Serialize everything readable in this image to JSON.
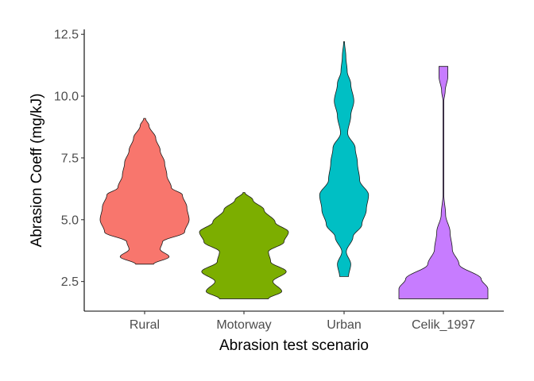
{
  "chart_data": {
    "type": "violin",
    "xlabel": "Abrasion test scenario",
    "ylabel": "Abrasion Coeff (mg/kJ)",
    "ylim": [
      1.3,
      12.7
    ],
    "yticks": [
      "2.5",
      "5.0",
      "7.5",
      "10.0",
      "12.5"
    ],
    "categories": [
      "Rural",
      "Motorway",
      "Urban",
      "Celik_1997"
    ],
    "grid": false,
    "legend": "none",
    "series": [
      {
        "category": "Rural",
        "color": "#F8766D",
        "y_range": [
          3.2,
          9.1
        ],
        "density_profile": [
          [
            3.2,
            0.2
          ],
          [
            3.5,
            0.55
          ],
          [
            3.8,
            0.35
          ],
          [
            4.1,
            0.4
          ],
          [
            4.5,
            0.9
          ],
          [
            5.0,
            1.0
          ],
          [
            5.5,
            0.95
          ],
          [
            6.0,
            0.85
          ],
          [
            6.3,
            0.6
          ],
          [
            6.8,
            0.5
          ],
          [
            7.3,
            0.45
          ],
          [
            7.8,
            0.35
          ],
          [
            8.3,
            0.25
          ],
          [
            8.8,
            0.1
          ],
          [
            9.1,
            0.02
          ]
        ]
      },
      {
        "category": "Motorway",
        "color": "#7CAE00",
        "y_range": [
          1.8,
          6.1
        ],
        "density_profile": [
          [
            1.8,
            0.55
          ],
          [
            2.1,
            0.85
          ],
          [
            2.5,
            0.65
          ],
          [
            2.9,
            0.95
          ],
          [
            3.3,
            0.6
          ],
          [
            3.7,
            0.55
          ],
          [
            4.1,
            0.9
          ],
          [
            4.5,
            1.0
          ],
          [
            4.9,
            0.7
          ],
          [
            5.4,
            0.45
          ],
          [
            5.8,
            0.2
          ],
          [
            6.1,
            0.02
          ]
        ]
      },
      {
        "category": "Urban",
        "color": "#00BFC4",
        "y_range": [
          2.7,
          12.2
        ],
        "density_profile": [
          [
            2.7,
            0.1
          ],
          [
            3.2,
            0.15
          ],
          [
            3.7,
            0.05
          ],
          [
            4.3,
            0.2
          ],
          [
            4.8,
            0.4
          ],
          [
            5.4,
            0.5
          ],
          [
            6.0,
            0.55
          ],
          [
            6.6,
            0.35
          ],
          [
            7.3,
            0.3
          ],
          [
            7.9,
            0.25
          ],
          [
            8.5,
            0.08
          ],
          [
            9.2,
            0.15
          ],
          [
            9.8,
            0.22
          ],
          [
            10.5,
            0.15
          ],
          [
            11.0,
            0.07
          ],
          [
            11.6,
            0.04
          ],
          [
            12.2,
            0.01
          ]
        ]
      },
      {
        "category": "Celik_1997",
        "color": "#C77CFF",
        "y_range": [
          1.8,
          11.2
        ],
        "density_profile": [
          [
            1.8,
            1.0
          ],
          [
            2.2,
            1.0
          ],
          [
            2.6,
            0.85
          ],
          [
            3.2,
            0.35
          ],
          [
            3.8,
            0.2
          ],
          [
            4.5,
            0.15
          ],
          [
            5.2,
            0.05
          ],
          [
            6.0,
            0.01
          ],
          [
            9.8,
            0.01
          ],
          [
            10.2,
            0.04
          ],
          [
            10.8,
            0.1
          ],
          [
            11.2,
            0.1
          ]
        ]
      }
    ]
  }
}
